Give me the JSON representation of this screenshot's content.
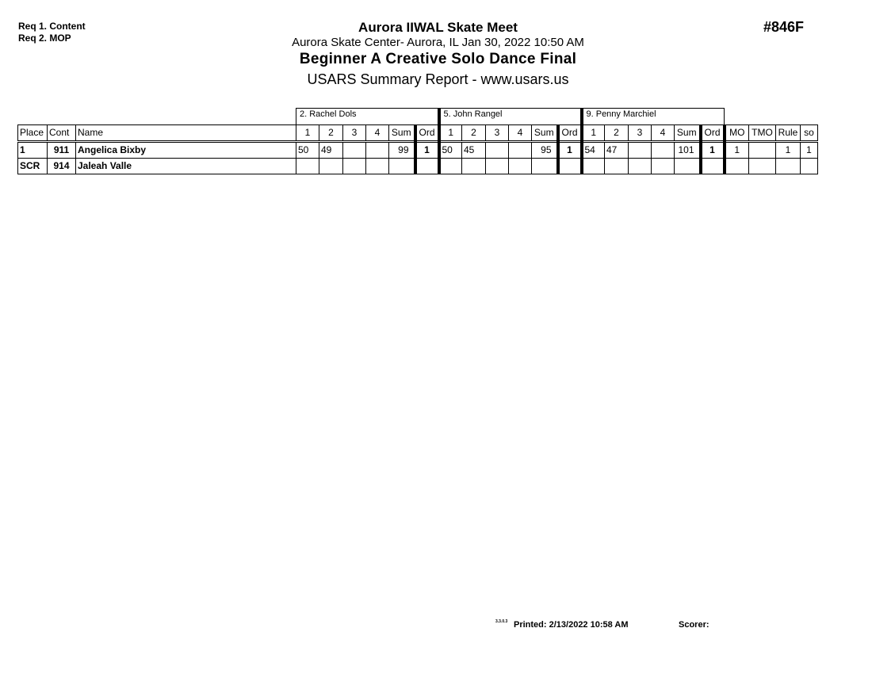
{
  "requirements": [
    "Req  1.  Content",
    "Req  2.  MOP"
  ],
  "event_code": "#846F",
  "header": {
    "meet": "Aurora IIWAL Skate Meet",
    "location": "Aurora Skate Center- Aurora, IL  Jan 30, 2022  10:50 AM",
    "event": "Beginner A Creative Solo Dance Final",
    "report": "USARS Summary Report - www.usars.us"
  },
  "judges": [
    "2.  Rachel Dols",
    "5.  John Rangel",
    "9.  Penny Marchiel"
  ],
  "columns": {
    "place": "Place",
    "cont": "Cont",
    "name": "Name",
    "judge_cols": [
      "1",
      "2",
      "3",
      "4",
      "Sum",
      "Ord"
    ],
    "tail": [
      "MO",
      "TMO",
      "Rule",
      "so"
    ]
  },
  "rows": [
    {
      "place": "1",
      "cont": "911",
      "name": "Angelica Bixby",
      "scores": [
        [
          "50",
          "49",
          "",
          "",
          "99",
          "1"
        ],
        [
          "50",
          "45",
          "",
          "",
          "95",
          "1"
        ],
        [
          "54",
          "47",
          "",
          "",
          "101",
          "1"
        ]
      ],
      "tail": [
        "1",
        "",
        "1",
        "1"
      ]
    },
    {
      "place": "SCR",
      "cont": "914",
      "name": "Jaleah Valle",
      "scores": [
        [
          "",
          "",
          "",
          "",
          "",
          ""
        ],
        [
          "",
          "",
          "",
          "",
          "",
          ""
        ],
        [
          "",
          "",
          "",
          "",
          "",
          ""
        ]
      ],
      "tail": [
        "",
        "",
        "",
        ""
      ]
    }
  ],
  "footer": {
    "version": "3.3.0.3",
    "printed": "Printed: 2/13/2022  10:58 AM",
    "scorer": "Scorer:"
  }
}
